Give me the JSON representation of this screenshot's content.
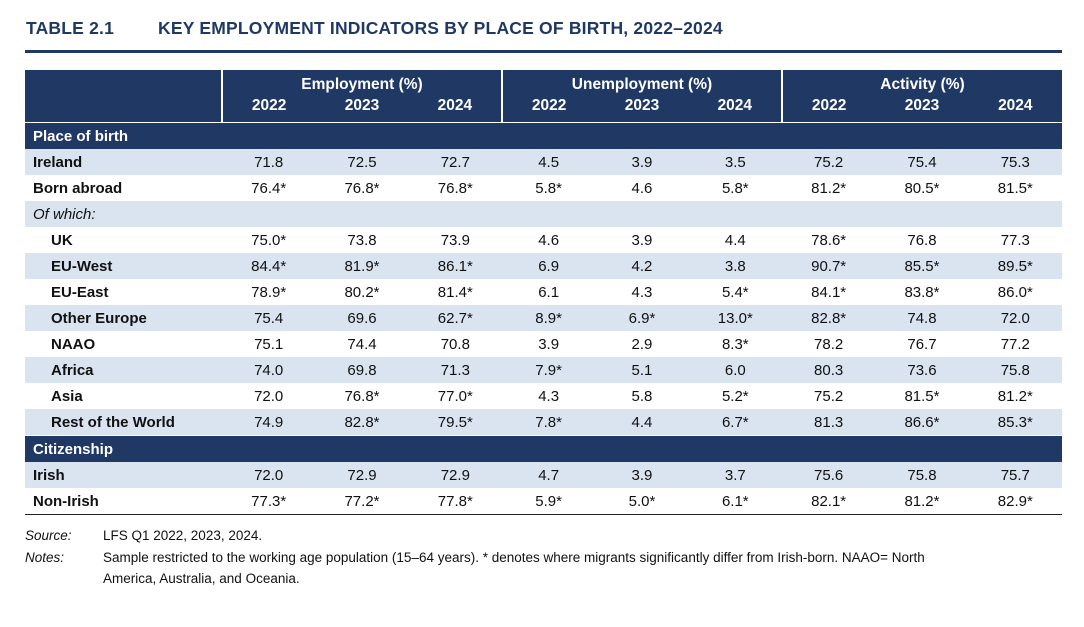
{
  "header": {
    "table_number": "TABLE 2.1",
    "title": "KEY EMPLOYMENT INDICATORS BY PLACE OF BIRTH, 2022–2024"
  },
  "table": {
    "column_groups": [
      "Employment (%)",
      "Unemployment (%)",
      "Activity (%)"
    ],
    "years": [
      "2022",
      "2023",
      "2024"
    ],
    "sections": [
      {
        "header": "Place of birth",
        "rows": [
          {
            "label": "Ireland",
            "indent": false,
            "italic": false,
            "values": [
              "71.8",
              "72.5",
              "72.7",
              "4.5",
              "3.9",
              "3.5",
              "75.2",
              "75.4",
              "75.3"
            ]
          },
          {
            "label": "Born abroad",
            "indent": false,
            "italic": false,
            "values": [
              "76.4*",
              "76.8*",
              "76.8*",
              "5.8*",
              "4.6",
              "5.8*",
              "81.2*",
              "80.5*",
              "81.5*"
            ]
          },
          {
            "label": "Of which:",
            "indent": false,
            "italic": true,
            "values": [
              "",
              "",
              "",
              "",
              "",
              "",
              "",
              "",
              ""
            ]
          },
          {
            "label": "UK",
            "indent": true,
            "italic": false,
            "values": [
              "75.0*",
              "73.8",
              "73.9",
              "4.6",
              "3.9",
              "4.4",
              "78.6*",
              "76.8",
              "77.3"
            ]
          },
          {
            "label": "EU-West",
            "indent": true,
            "italic": false,
            "values": [
              "84.4*",
              "81.9*",
              "86.1*",
              "6.9",
              "4.2",
              "3.8",
              "90.7*",
              "85.5*",
              "89.5*"
            ]
          },
          {
            "label": "EU-East",
            "indent": true,
            "italic": false,
            "values": [
              "78.9*",
              "80.2*",
              "81.4*",
              "6.1",
              "4.3",
              "5.4*",
              "84.1*",
              "83.8*",
              "86.0*"
            ]
          },
          {
            "label": "Other Europe",
            "indent": true,
            "italic": false,
            "values": [
              "75.4",
              "69.6",
              "62.7*",
              "8.9*",
              "6.9*",
              "13.0*",
              "82.8*",
              "74.8",
              "72.0"
            ]
          },
          {
            "label": "NAAO",
            "indent": true,
            "italic": false,
            "values": [
              "75.1",
              "74.4",
              "70.8",
              "3.9",
              "2.9",
              "8.3*",
              "78.2",
              "76.7",
              "77.2"
            ]
          },
          {
            "label": "Africa",
            "indent": true,
            "italic": false,
            "values": [
              "74.0",
              "69.8",
              "71.3",
              "7.9*",
              "5.1",
              "6.0",
              "80.3",
              "73.6",
              "75.8"
            ]
          },
          {
            "label": "Asia",
            "indent": true,
            "italic": false,
            "values": [
              "72.0",
              "76.8*",
              "77.0*",
              "4.3",
              "5.8",
              "5.2*",
              "75.2",
              "81.5*",
              "81.2*"
            ]
          },
          {
            "label": "Rest of the World",
            "indent": true,
            "italic": false,
            "values": [
              "74.9",
              "82.8*",
              "79.5*",
              "7.8*",
              "4.4",
              "6.7*",
              "81.3",
              "86.6*",
              "85.3*"
            ]
          }
        ]
      },
      {
        "header": "Citizenship",
        "rows": [
          {
            "label": "Irish",
            "indent": false,
            "italic": false,
            "values": [
              "72.0",
              "72.9",
              "72.9",
              "4.7",
              "3.9",
              "3.7",
              "75.6",
              "75.8",
              "75.7"
            ]
          },
          {
            "label": "Non-Irish",
            "indent": false,
            "italic": false,
            "values": [
              "77.3*",
              "77.2*",
              "77.8*",
              "5.9*",
              "5.0*",
              "6.1*",
              "82.1*",
              "81.2*",
              "82.9*"
            ]
          }
        ]
      }
    ]
  },
  "footer": {
    "source_label": "Source:",
    "source_text": "LFS Q1 2022, 2023, 2024.",
    "notes_label": "Notes:",
    "notes_text": "Sample restricted to the working age population (15–64 years). * denotes where migrants significantly differ from Irish-born. NAAO= North America, Australia, and Oceania."
  },
  "colors": {
    "navy": "#1F3864",
    "stripe": "#DAE3F0",
    "text": "#111111"
  }
}
